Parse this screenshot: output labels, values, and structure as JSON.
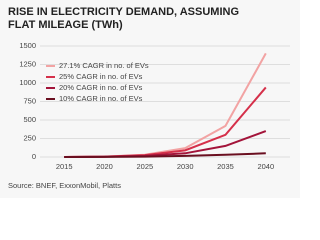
{
  "chart_data": {
    "type": "line",
    "title": "RISE IN ELECTRICITY DEMAND, ASSUMING FLAT MILEAGE (TWh)",
    "source": "Source: BNEF, ExxonMobil, Platts",
    "x": [
      2015,
      2020,
      2025,
      2030,
      2035,
      2040
    ],
    "xlim": [
      2012,
      2043
    ],
    "xticks": [
      2015,
      2020,
      2025,
      2030,
      2035,
      2040
    ],
    "ylim": [
      0,
      1500
    ],
    "yticks": [
      0,
      250,
      500,
      750,
      1000,
      1250,
      1500
    ],
    "grid": true,
    "legend": "upper-left",
    "series": [
      {
        "name": "27.1% CAGR in no. of EVs",
        "color": "#f2a3a3",
        "values": [
          0,
          5,
          30,
          120,
          420,
          1400
        ]
      },
      {
        "name": "25% CAGR in no. of EVs",
        "color": "#d5304a",
        "values": [
          0,
          5,
          25,
          90,
          300,
          940
        ]
      },
      {
        "name": "20% CAGR in no. of EVs",
        "color": "#a3143a",
        "values": [
          0,
          3,
          15,
          50,
          150,
          350
        ]
      },
      {
        "name": "10% CAGR in no. of EVs",
        "color": "#6a0f20",
        "values": [
          0,
          2,
          5,
          15,
          30,
          50
        ]
      }
    ]
  }
}
